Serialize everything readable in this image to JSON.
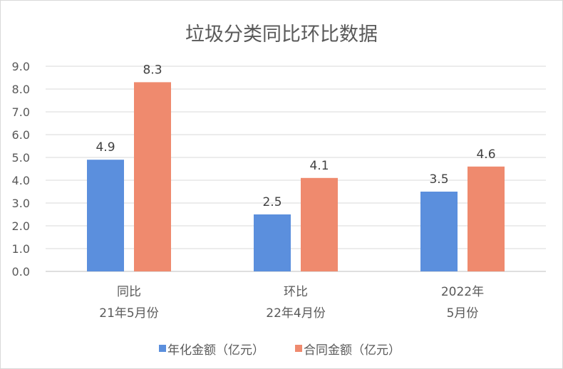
{
  "chart_data": {
    "type": "bar",
    "title": "垃圾分类同比环比数据",
    "categories": [
      [
        "同比",
        "21年5月份"
      ],
      [
        "环比",
        "22年4月份"
      ],
      [
        "2022年",
        "5月份"
      ]
    ],
    "series": [
      {
        "name": "年化金额（亿元）",
        "color": "#5b8fdd",
        "values": [
          4.9,
          2.5,
          3.5
        ]
      },
      {
        "name": "合同金额（亿元）",
        "color": "#ef8a6e",
        "values": [
          8.3,
          4.1,
          4.6
        ]
      }
    ],
    "ylim": [
      0,
      9
    ],
    "yticks": [
      "0.0",
      "1.0",
      "2.0",
      "3.0",
      "4.0",
      "5.0",
      "6.0",
      "7.0",
      "8.0",
      "9.0"
    ],
    "grid": true,
    "legend_position": "bottom",
    "data_labels": [
      [
        "4.9",
        "2.5",
        "3.5"
      ],
      [
        "8.3",
        "4.1",
        "4.6"
      ]
    ]
  }
}
